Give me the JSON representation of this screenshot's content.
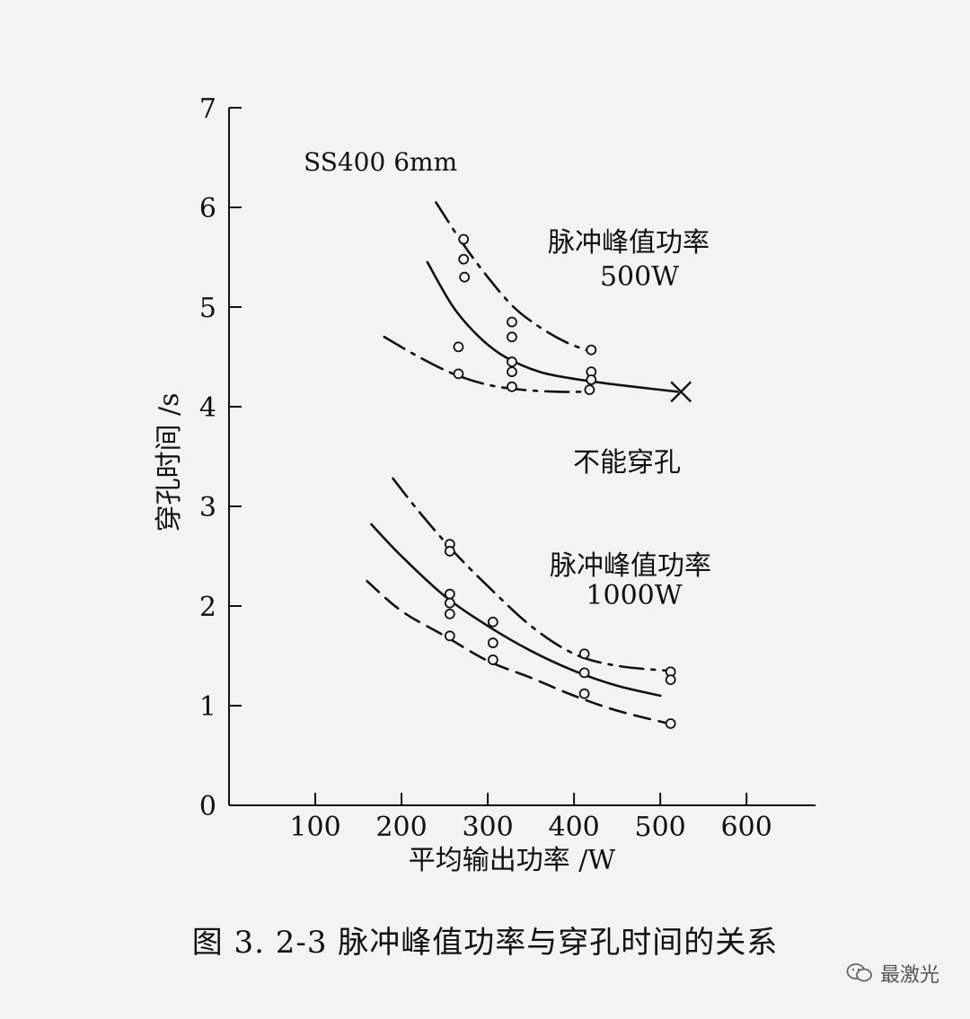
{
  "caption": "图 3. 2-3    脉冲峰值功率与穿孔时间的关系",
  "watermark": "最激光",
  "chart_data": {
    "type": "line",
    "title": "",
    "xlabel": "平均输出功率 /W",
    "ylabel": "穿孔时间 /s",
    "xlim": [
      0,
      680
    ],
    "ylim": [
      0,
      7
    ],
    "xticks": [
      100,
      200,
      300,
      400,
      500,
      600
    ],
    "yticks": [
      0,
      1,
      2,
      3,
      4,
      5,
      6,
      7
    ],
    "grid": false,
    "annotations": [
      {
        "text": "SS400   6mm",
        "x": 30,
        "y": 6.5
      },
      {
        "text": "脉冲峰值功率",
        "x": 420,
        "y": 5.8
      },
      {
        "text": "500W",
        "x": 420,
        "y": 5.4
      },
      {
        "text": "不能穿孔",
        "x": 420,
        "y": 3.4
      },
      {
        "text": "脉冲峰值功率",
        "x": 420,
        "y": 2.5
      },
      {
        "text": "1000W",
        "x": 420,
        "y": 2.1
      }
    ],
    "series": [
      {
        "group": "500W",
        "style": "dash-dot",
        "x": [
          240,
          270,
          300,
          330,
          360,
          390,
          420
        ],
        "y": [
          6.05,
          5.65,
          5.3,
          5.0,
          4.8,
          4.65,
          4.55
        ]
      },
      {
        "group": "500W",
        "style": "solid",
        "x": [
          230,
          260,
          290,
          320,
          360,
          400,
          450,
          500,
          520
        ],
        "y": [
          5.45,
          5.0,
          4.7,
          4.5,
          4.35,
          4.28,
          4.22,
          4.17,
          4.15
        ]
      },
      {
        "group": "500W",
        "style": "dash-dot",
        "x": [
          180,
          220,
          260,
          300,
          340,
          380,
          410
        ],
        "y": [
          4.7,
          4.5,
          4.33,
          4.22,
          4.17,
          4.15,
          4.15
        ]
      },
      {
        "group": "1000W",
        "style": "dash-dot",
        "x": [
          190,
          220,
          260,
          300,
          350,
          400,
          450,
          510
        ],
        "y": [
          3.28,
          2.95,
          2.55,
          2.2,
          1.8,
          1.52,
          1.4,
          1.35
        ]
      },
      {
        "group": "1000W",
        "style": "solid",
        "x": [
          165,
          200,
          250,
          300,
          350,
          400,
          450,
          500
        ],
        "y": [
          2.82,
          2.5,
          2.1,
          1.8,
          1.55,
          1.35,
          1.2,
          1.1
        ]
      },
      {
        "group": "1000W",
        "style": "dashed",
        "x": [
          160,
          200,
          250,
          300,
          350,
          400,
          450,
          510
        ],
        "y": [
          2.25,
          1.95,
          1.7,
          1.45,
          1.28,
          1.1,
          0.95,
          0.82
        ]
      }
    ],
    "points": [
      {
        "x": 272,
        "y": 5.68
      },
      {
        "x": 272,
        "y": 5.48
      },
      {
        "x": 273,
        "y": 5.3
      },
      {
        "x": 328,
        "y": 4.85
      },
      {
        "x": 328,
        "y": 4.7
      },
      {
        "x": 328,
        "y": 4.45
      },
      {
        "x": 328,
        "y": 4.35
      },
      {
        "x": 328,
        "y": 4.2
      },
      {
        "x": 266,
        "y": 4.6
      },
      {
        "x": 266,
        "y": 4.33
      },
      {
        "x": 420,
        "y": 4.57
      },
      {
        "x": 420,
        "y": 4.35
      },
      {
        "x": 420,
        "y": 4.27
      },
      {
        "x": 418,
        "y": 4.17
      },
      {
        "x": 256,
        "y": 2.62
      },
      {
        "x": 256,
        "y": 2.55
      },
      {
        "x": 256,
        "y": 2.12
      },
      {
        "x": 256,
        "y": 2.03
      },
      {
        "x": 256,
        "y": 1.92
      },
      {
        "x": 256,
        "y": 1.7
      },
      {
        "x": 306,
        "y": 1.84
      },
      {
        "x": 306,
        "y": 1.63
      },
      {
        "x": 306,
        "y": 1.46
      },
      {
        "x": 412,
        "y": 1.52
      },
      {
        "x": 412,
        "y": 1.33
      },
      {
        "x": 412,
        "y": 1.12
      },
      {
        "x": 512,
        "y": 1.34
      },
      {
        "x": 512,
        "y": 1.26
      },
      {
        "x": 512,
        "y": 0.82
      }
    ],
    "limit_marker": {
      "x": 524,
      "y": 4.15
    }
  }
}
